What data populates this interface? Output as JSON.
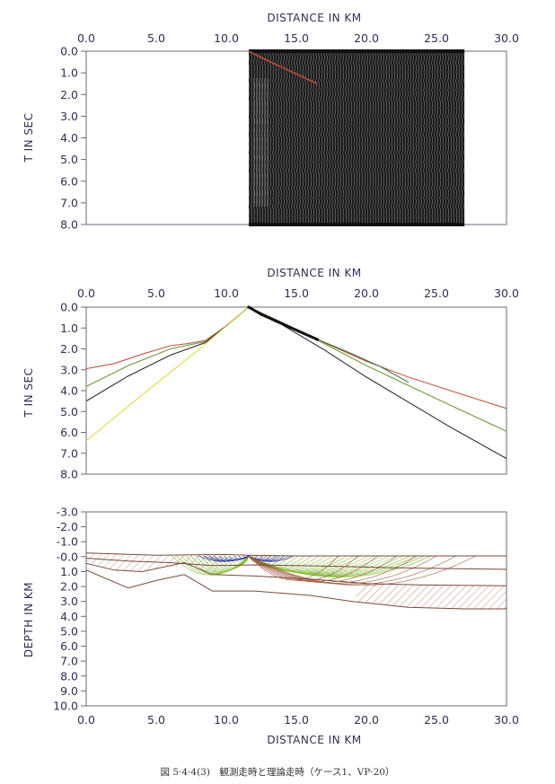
{
  "chart_data": [
    {
      "type": "seismic-record-section",
      "xlabel": "DISTANCE IN KM",
      "ylabel": "T IN SEC",
      "xticks": [
        "0.0",
        "5.0",
        "10.0",
        "15.0",
        "20.0",
        "25.0",
        "30.0"
      ],
      "yticks": [
        "0.0",
        "1.0",
        "2.0",
        "3.0",
        "4.0",
        "5.0",
        "6.0",
        "7.0",
        "8.0"
      ],
      "xlim": [
        0,
        30
      ],
      "ylim": [
        0,
        8
      ],
      "trace_range_km": [
        11.6,
        27.0
      ],
      "picked_first_arrivals": {
        "x": [
          11.6,
          13.0,
          14.5,
          16.0,
          16.5
        ],
        "y": [
          0.0,
          0.45,
          0.9,
          1.35,
          1.5
        ]
      },
      "colors": {
        "traces": "#111111",
        "picks": "#c04a3a"
      }
    },
    {
      "type": "line",
      "xlabel": "DISTANCE IN KM",
      "ylabel": "T IN SEC",
      "xticks": [
        "0.0",
        "5.0",
        "10.0",
        "15.0",
        "20.0",
        "25.0",
        "30.0"
      ],
      "yticks": [
        "0.0",
        "1.0",
        "2.0",
        "3.0",
        "4.0",
        "5.0",
        "6.0",
        "7.0",
        "8.0"
      ],
      "xlim": [
        0,
        30
      ],
      "ylim": [
        0,
        8
      ],
      "series": [
        {
          "color": "#c05a48",
          "x": [
            0,
            2,
            4,
            6,
            7.2,
            8.5,
            10,
            11.6,
            14,
            17,
            20,
            23,
            26,
            30
          ],
          "y": [
            2.95,
            2.7,
            2.25,
            1.85,
            1.75,
            1.6,
            0.9,
            0.0,
            0.75,
            1.7,
            2.6,
            3.35,
            4.0,
            4.85
          ]
        },
        {
          "color": "#6a9a3a",
          "x": [
            0,
            3,
            6,
            8.5,
            10,
            11.6,
            14,
            17,
            20,
            23,
            26,
            30
          ],
          "y": [
            3.8,
            2.8,
            2.0,
            1.65,
            0.9,
            0.0,
            0.75,
            1.75,
            2.8,
            3.75,
            4.7,
            5.95
          ]
        },
        {
          "color": "#2a2a3a",
          "x": [
            0,
            3,
            6,
            8.5,
            10,
            11.6,
            14,
            17,
            20,
            23,
            26,
            30
          ],
          "y": [
            4.5,
            3.3,
            2.3,
            1.7,
            0.9,
            0.0,
            0.85,
            2.05,
            3.35,
            4.55,
            5.75,
            7.25
          ]
        },
        {
          "color": "#e6d84a",
          "x": [
            0,
            4,
            8,
            11.6
          ],
          "y": [
            6.4,
            4.2,
            2.05,
            0.0
          ]
        },
        {
          "color": "#4a6a4a",
          "x": [
            11.6,
            14,
            16,
            18.5,
            21,
            23
          ],
          "y": [
            0.0,
            0.75,
            1.4,
            2.1,
            2.85,
            3.6
          ]
        }
      ],
      "observed_picks": {
        "x": [
          11.6,
          12.5,
          13.5,
          14.5,
          15.5,
          16.5
        ],
        "y": [
          0.0,
          0.35,
          0.65,
          0.95,
          1.25,
          1.55
        ],
        "color": "#111111"
      }
    },
    {
      "type": "ray-diagram",
      "xlabel": "DISTANCE IN KM",
      "ylabel": "DEPTH IN KM",
      "xticks": [
        "0.0",
        "5.0",
        "10.0",
        "15.0",
        "20.0",
        "25.0",
        "30.0"
      ],
      "yticks": [
        "-3.0",
        "-2.0",
        "-1.0",
        "-0.0",
        "1.0",
        "2.0",
        "3.0",
        "4.0",
        "5.0",
        "6.0",
        "7.0",
        "8.0",
        "9.0",
        "10.0"
      ],
      "xlim": [
        0,
        30
      ],
      "ylim": [
        -3,
        10
      ],
      "source_x_km": 11.6,
      "boundaries": [
        {
          "x": [
            0,
            5,
            10,
            11.6,
            15,
            20,
            25,
            30
          ],
          "y": [
            -0.25,
            -0.1,
            -0.15,
            -0.1,
            -0.05,
            -0.05,
            -0.05,
            -0.05
          ]
        },
        {
          "x": [
            0,
            3,
            6,
            9,
            12,
            15,
            18,
            22,
            26,
            30
          ],
          "y": [
            0.1,
            0.3,
            0.4,
            0.6,
            0.55,
            0.6,
            0.65,
            0.75,
            0.8,
            0.85
          ]
        },
        {
          "x": [
            0,
            2,
            4,
            7,
            9,
            12,
            16,
            20,
            24,
            30
          ],
          "y": [
            0.45,
            0.9,
            1.0,
            0.4,
            1.2,
            1.3,
            1.5,
            1.8,
            1.9,
            1.95
          ]
        },
        {
          "x": [
            0,
            3,
            5,
            7,
            9,
            12,
            16,
            19,
            23,
            27,
            30
          ],
          "y": [
            0.9,
            2.1,
            1.6,
            1.2,
            2.3,
            2.3,
            2.6,
            3.0,
            3.4,
            3.5,
            3.5
          ]
        }
      ],
      "colors": {
        "boundary": "#7a4a3a",
        "shallow_rays": "#3a3a9a",
        "refracted_rays": "#8ac040",
        "deep_rays": "#a05a40"
      }
    }
  ],
  "caption": "図 5·4·4(3)　観測走時と理論走時（ケース1、VP·20）"
}
